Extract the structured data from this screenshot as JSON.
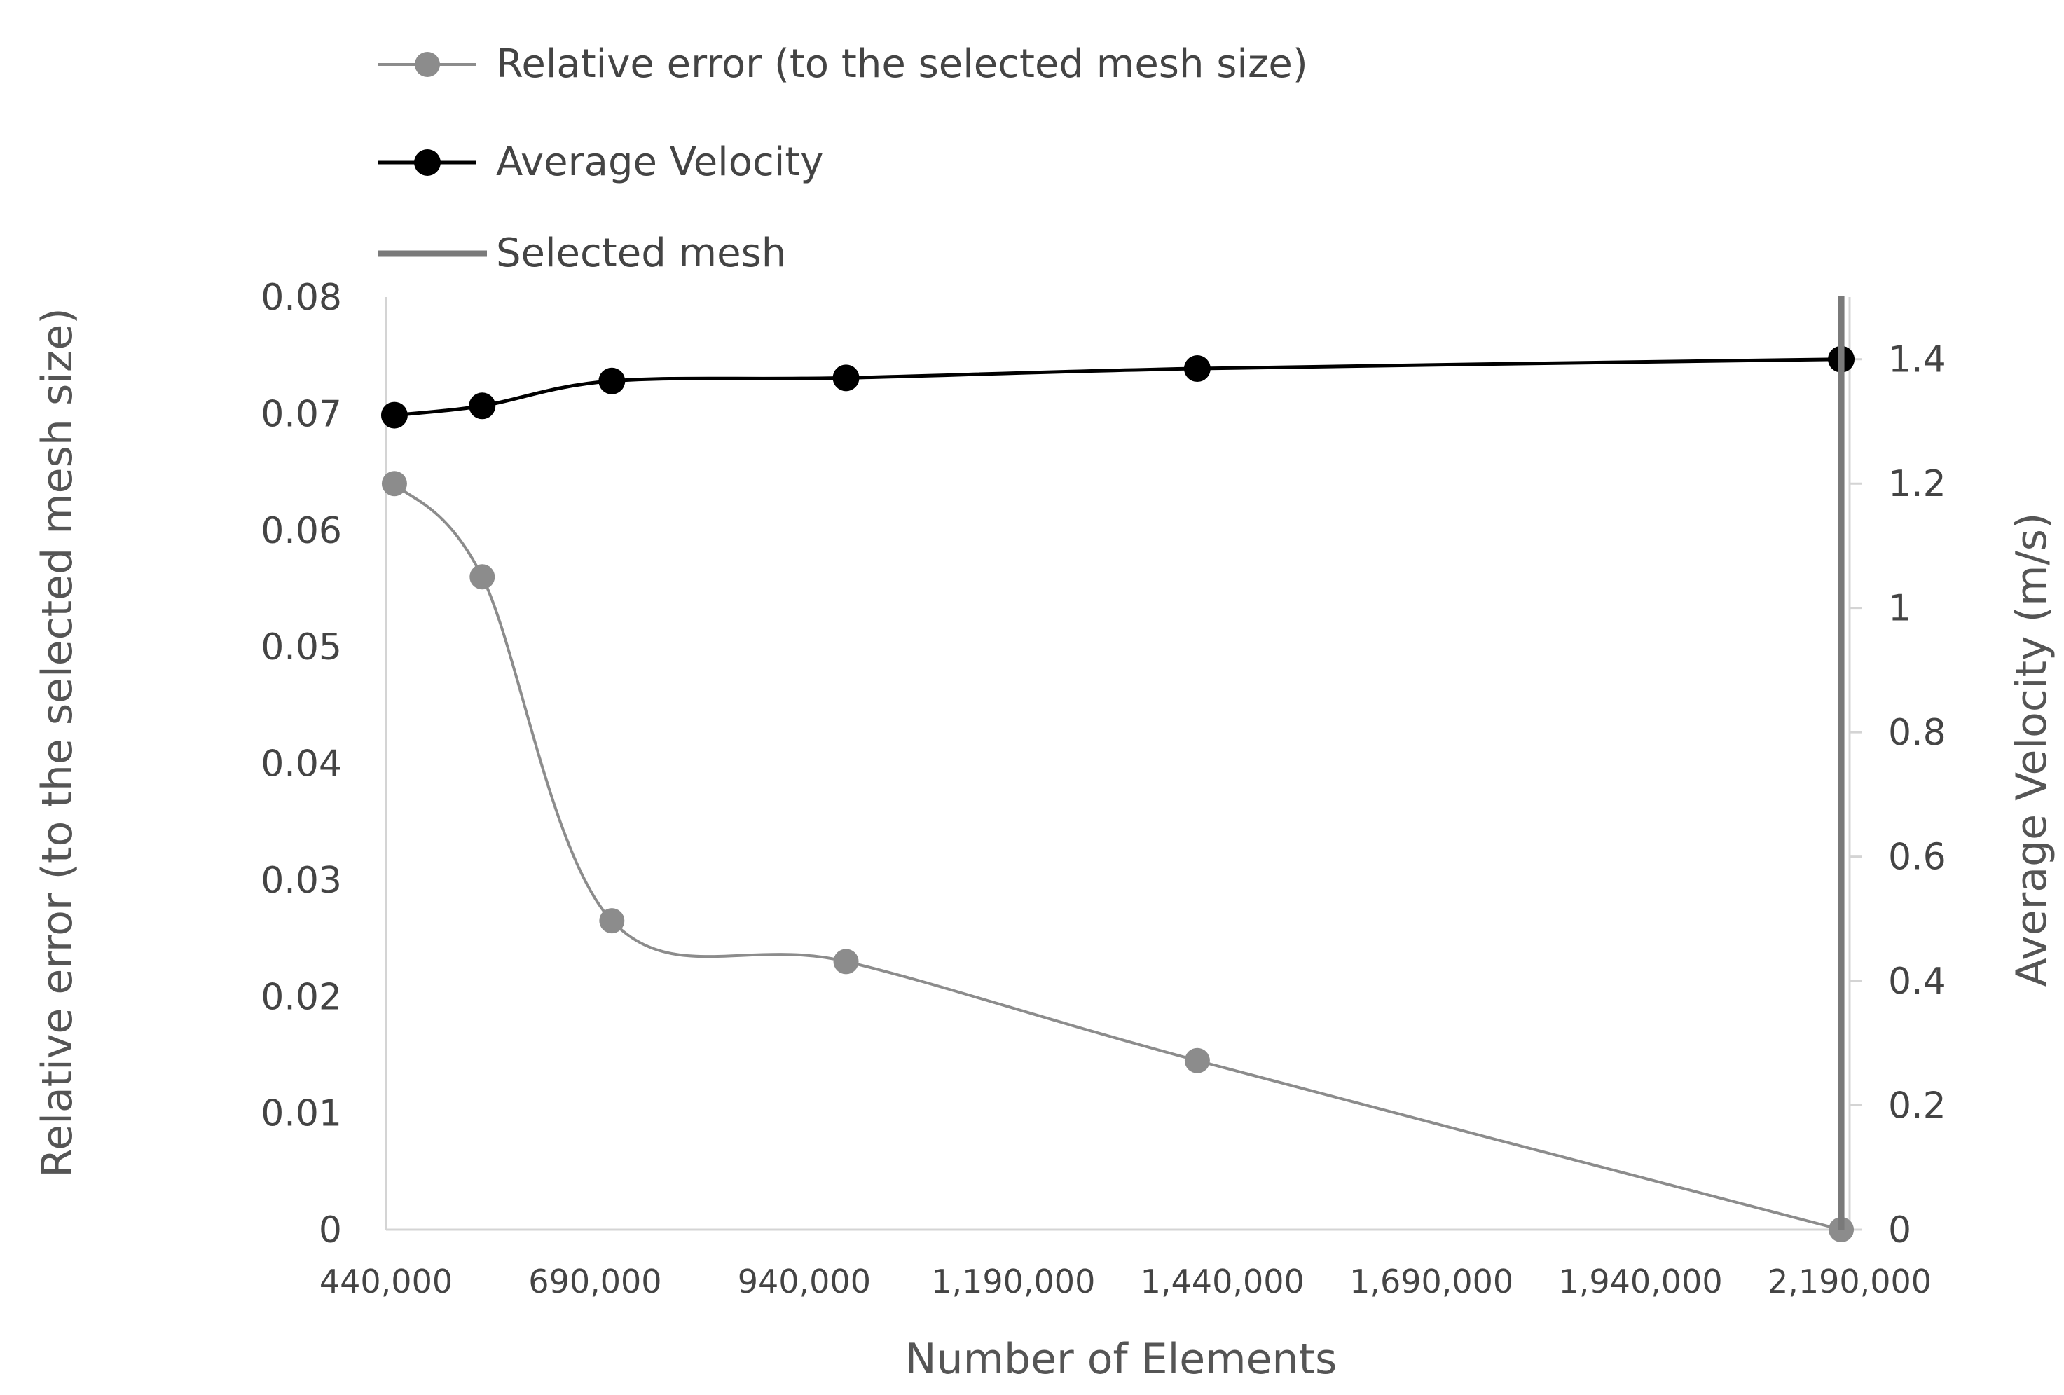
{
  "chart_data": {
    "type": "line",
    "x_label": "Number of Elements",
    "y_label": "Relative error (to the selected mesh size)",
    "y2_label": "Average Velocity (m/s)",
    "x_range": [
      440000,
      2190000
    ],
    "x_ticks": [
      "440,000",
      "690,000",
      "940,000",
      "1,190,000",
      "1,440,000",
      "1,690,000",
      "1,940,000",
      "2,190,000"
    ],
    "x_tick_values": [
      440000,
      690000,
      940000,
      1190000,
      1440000,
      1690000,
      1940000,
      2190000
    ],
    "y_range": [
      0,
      0.08
    ],
    "y_ticks": [
      "0",
      "0.01",
      "0.02",
      "0.03",
      "0.04",
      "0.05",
      "0.06",
      "0.07",
      "0.08"
    ],
    "y_tick_values": [
      0,
      0.01,
      0.02,
      0.03,
      0.04,
      0.05,
      0.06,
      0.07,
      0.08
    ],
    "y2_range": [
      0,
      1.5
    ],
    "y2_ticks": [
      "0",
      "0.2",
      "0.4",
      "0.6",
      "0.8",
      "1",
      "1.2",
      "1.4"
    ],
    "y2_tick_values": [
      0,
      0.2,
      0.4,
      0.6,
      0.8,
      1.0,
      1.2,
      1.4
    ],
    "legend_position": "top",
    "grid": false,
    "series": [
      {
        "name": "Relative error (to the selected mesh size)",
        "axis": "left",
        "color": "#8c8c8c",
        "smooth": true,
        "x": [
          450000,
          555000,
          710000,
          990000,
          1410000,
          2180000
        ],
        "y": [
          0.064,
          0.056,
          0.0265,
          0.023,
          0.0145,
          0
        ]
      },
      {
        "name": "Average Velocity",
        "axis": "right",
        "color": "#000000",
        "smooth": true,
        "x": [
          450000,
          555000,
          710000,
          990000,
          1410000,
          2180000
        ],
        "y": [
          1.31,
          1.325,
          1.365,
          1.37,
          1.385,
          1.4
        ]
      }
    ],
    "reference_line": {
      "name": "Selected mesh",
      "x": 2180000,
      "color": "#7a7a7a"
    }
  }
}
